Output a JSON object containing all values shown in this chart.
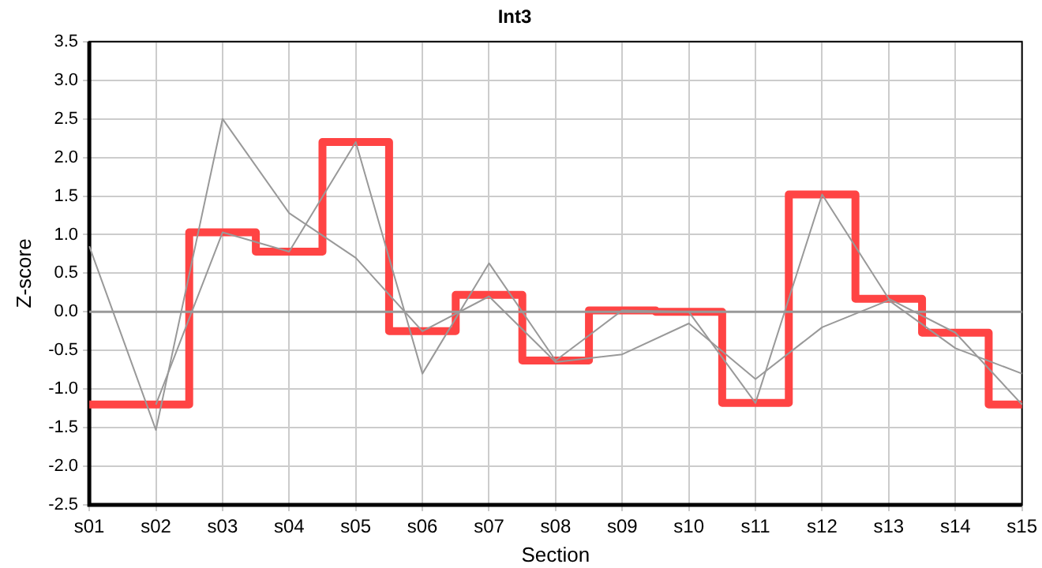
{
  "chart_data": {
    "type": "step",
    "title": "Int3",
    "xlabel": "Section",
    "ylabel": "Z-score",
    "categories": [
      "s01",
      "s02",
      "s03",
      "s04",
      "s05",
      "s06",
      "s07",
      "s08",
      "s09",
      "s10",
      "s11",
      "s12",
      "s13",
      "s14",
      "s15"
    ],
    "series": [
      {
        "type": "line",
        "color": "#999999",
        "values": [
          0.85,
          -1.53,
          2.5,
          1.28,
          0.7,
          -0.25,
          0.2,
          -0.65,
          -0.55,
          -0.15,
          -0.87,
          -0.2,
          0.15,
          -0.47,
          -0.8
        ]
      },
      {
        "type": "line",
        "color": "#999999",
        "values": [
          null,
          -1.2,
          1.03,
          0.78,
          2.2,
          -0.8,
          0.63,
          -0.63,
          0.02,
          0,
          -1.18,
          1.52,
          0.17,
          -0.27,
          -1.2
        ]
      },
      {
        "color": "#ff4444",
        "values": [
          -1.2,
          -1.2,
          1.03,
          0.78,
          2.2,
          -0.25,
          0.22,
          -0.63,
          0.02,
          0,
          -1.18,
          1.52,
          0.17,
          -0.27,
          -1.2
        ]
      }
    ],
    "ylim": [
      -2.5,
      3.5
    ],
    "yticks": [
      {
        "value": -2.5,
        "label": "-2.5"
      },
      {
        "value": -2,
        "label": "-2.0"
      },
      {
        "value": -1.5,
        "label": "-1.5"
      },
      {
        "value": -1,
        "label": "-1.0"
      },
      {
        "value": -0.5,
        "label": "-0.5"
      },
      {
        "value": 0,
        "label": "0.0"
      },
      {
        "value": 0.5,
        "label": "0.5"
      },
      {
        "value": 1,
        "label": "1.0"
      },
      {
        "value": 1.5,
        "label": "1.5"
      },
      {
        "value": 2,
        "label": "2.0"
      },
      {
        "value": 2.5,
        "label": "2.5"
      },
      {
        "value": 3,
        "label": "3.0"
      },
      {
        "value": 3.5,
        "label": "3.5"
      }
    ],
    "ref_lines": [
      {
        "axis": "y",
        "value": 0,
        "color": "#999999"
      }
    ],
    "grid": true,
    "legend": false,
    "marker": "none"
  }
}
